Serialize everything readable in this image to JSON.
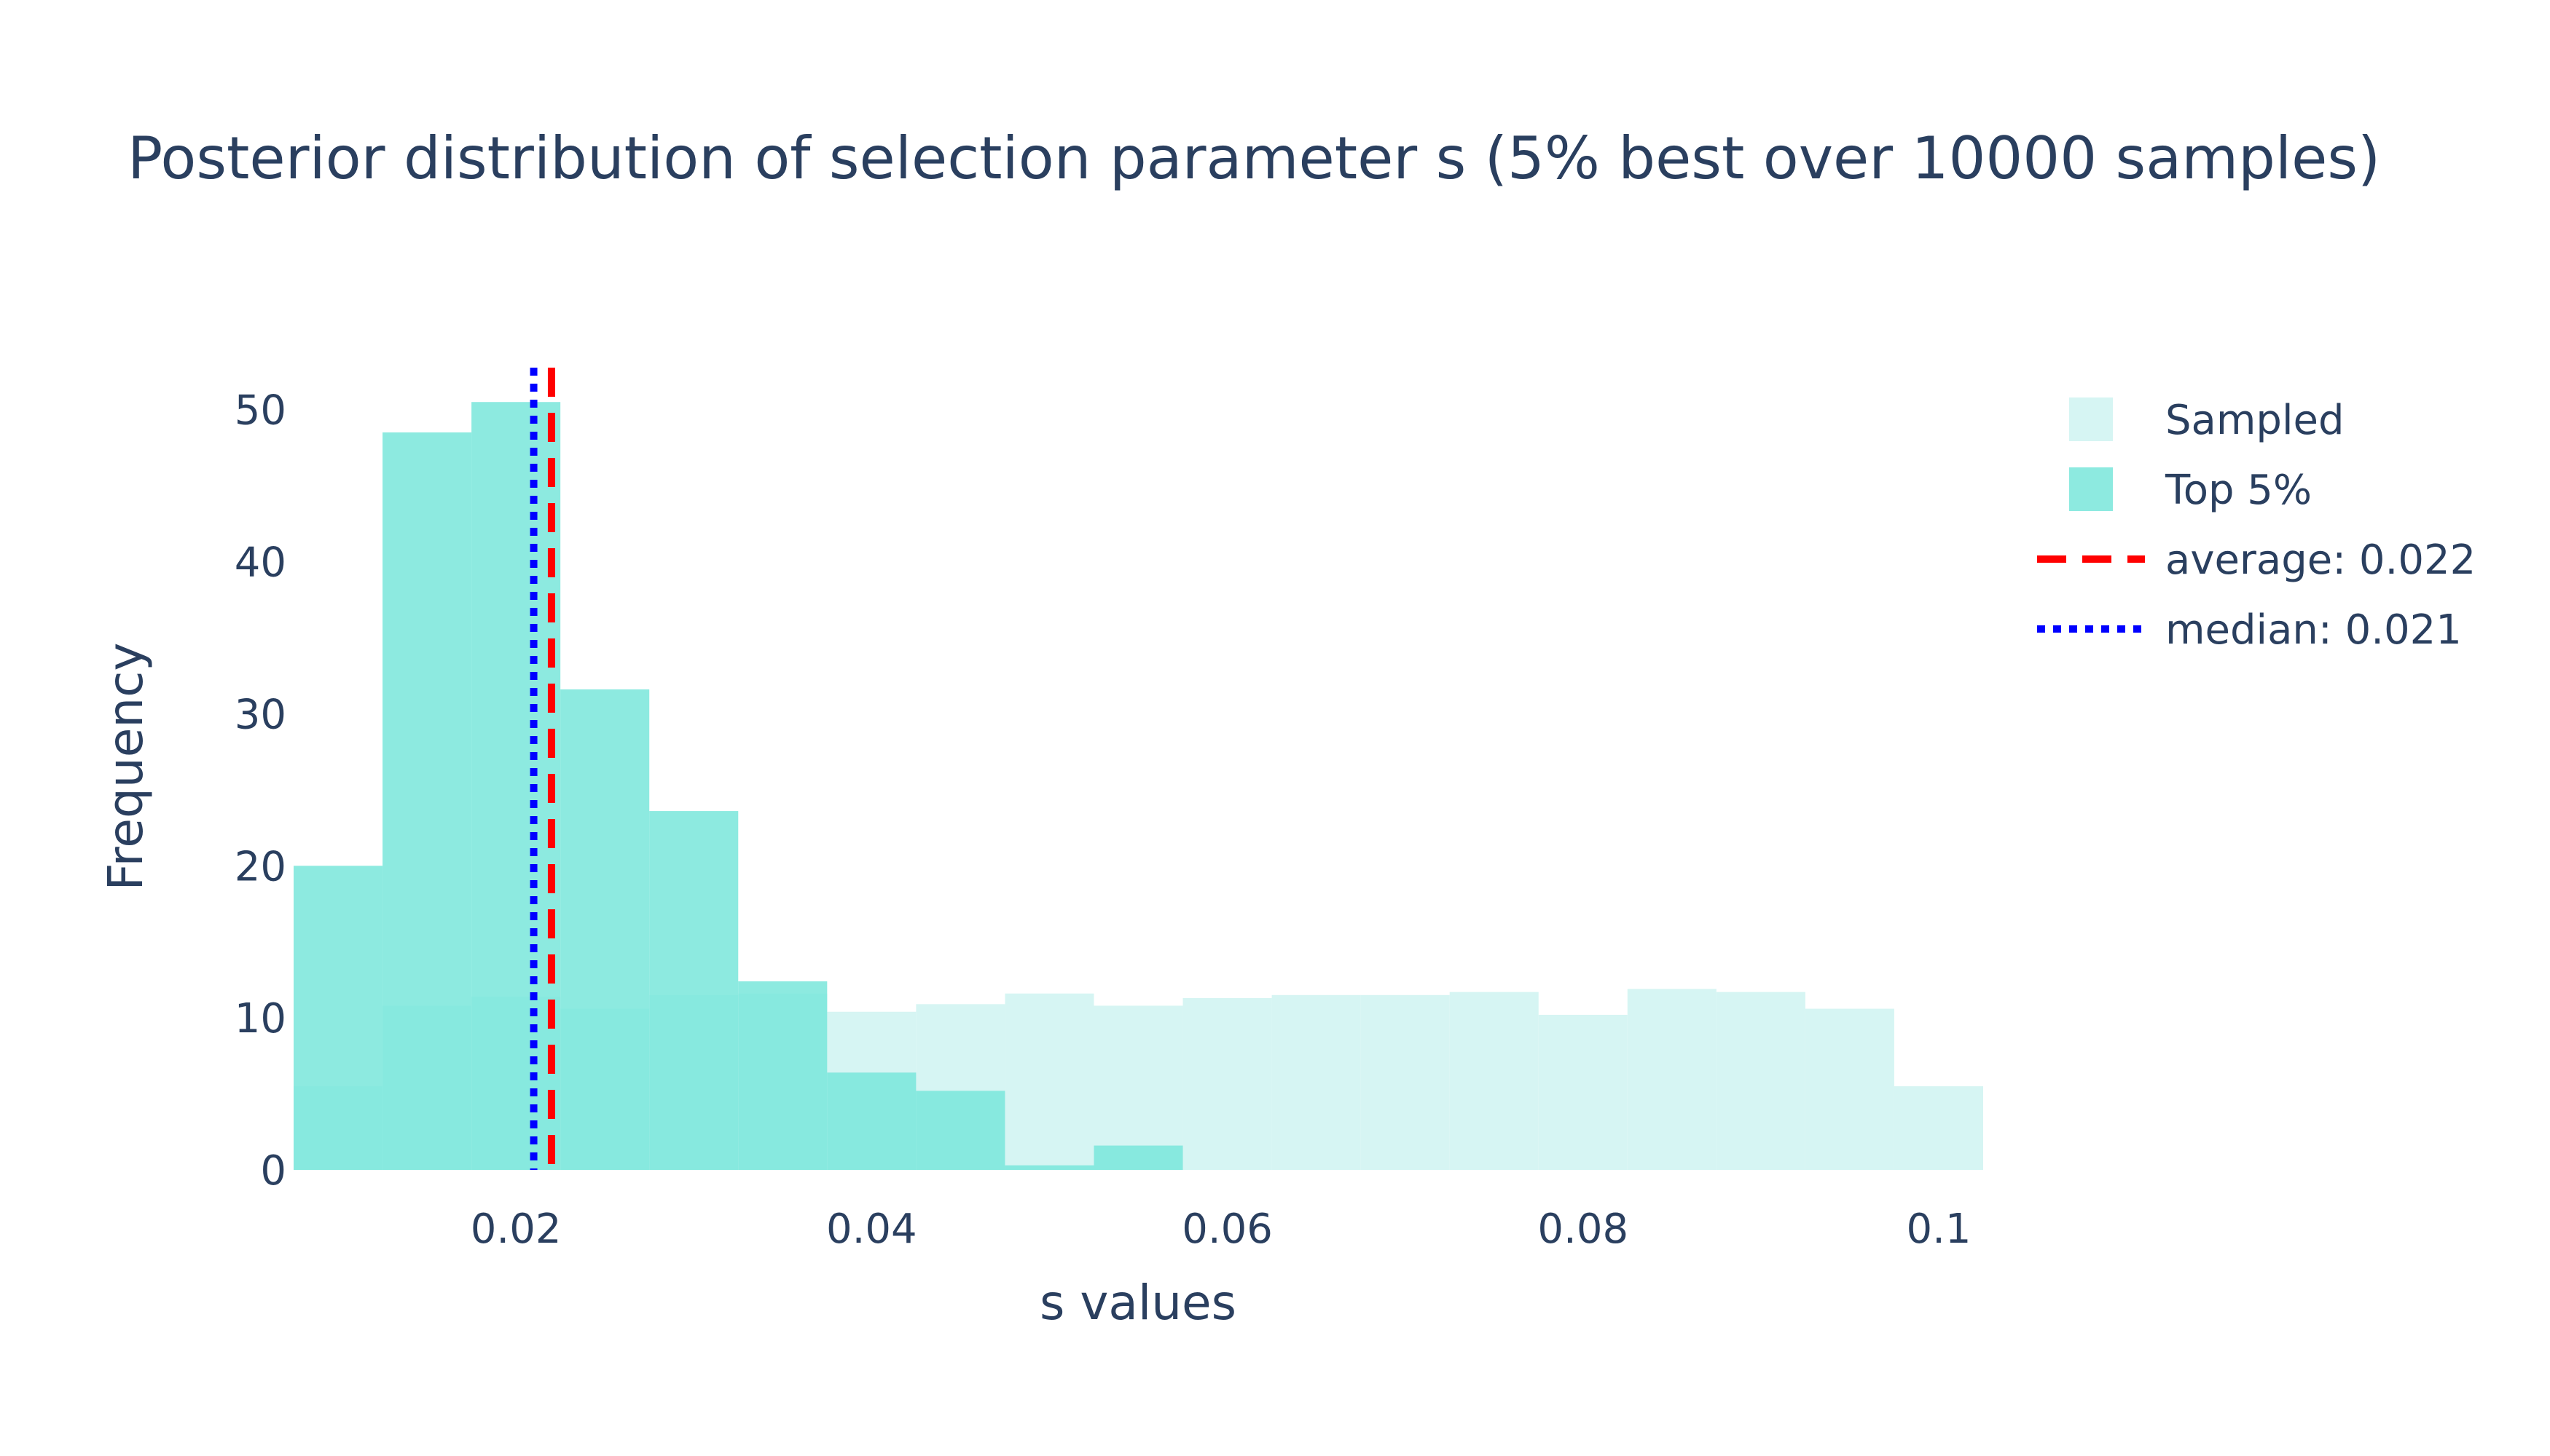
{
  "chart_data": {
    "type": "bar",
    "title": "Posterior distribution of selection parameter s (5% best over 10000 samples)",
    "xlabel": "s values",
    "ylabel": "Frequency",
    "xlim": [
      0.0075,
      0.1025
    ],
    "ylim": [
      0,
      53
    ],
    "xticks": [
      0.02,
      0.04,
      0.06,
      0.08,
      0.1
    ],
    "xtick_labels": [
      "0.02",
      "0.04",
      "0.06",
      "0.08",
      "0.1"
    ],
    "yticks": [
      0,
      10,
      20,
      30,
      40,
      50
    ],
    "ytick_labels": [
      "0",
      "10",
      "20",
      "30",
      "40",
      "50"
    ],
    "bin_edges": [
      0.0075,
      0.0125,
      0.0175,
      0.0225,
      0.0275,
      0.0325,
      0.0375,
      0.0425,
      0.0475,
      0.0525,
      0.0575,
      0.0625,
      0.0675,
      0.0725,
      0.0775,
      0.0825,
      0.0875,
      0.0925,
      0.0975,
      0.1025
    ],
    "grid": false,
    "legend_position": "top-right",
    "series": [
      {
        "name": "Sampled",
        "kind": "histogram",
        "color": "#d6f5f3",
        "values": [
          5.5,
          10.8,
          11.4,
          10.6,
          11.5,
          11.6,
          10.4,
          10.9,
          11.6,
          10.8,
          11.3,
          11.5,
          11.5,
          11.7,
          10.2,
          11.9,
          11.7,
          10.6,
          5.5
        ]
      },
      {
        "name": "Top 5%",
        "kind": "histogram",
        "color": "#79e6da",
        "opacity": 0.85,
        "values": [
          20,
          48.5,
          50.5,
          31.6,
          23.6,
          12.4,
          6.4,
          5.2,
          0.3,
          1.6,
          0,
          0,
          0,
          0,
          0,
          0,
          0,
          0,
          0
        ]
      },
      {
        "name": "average: 0.022",
        "kind": "vline",
        "x": 0.022,
        "color": "#ff0000",
        "dash": "dash"
      },
      {
        "name": "median: 0.021",
        "kind": "vline",
        "x": 0.021,
        "color": "#0000ff",
        "dash": "dot"
      }
    ]
  }
}
